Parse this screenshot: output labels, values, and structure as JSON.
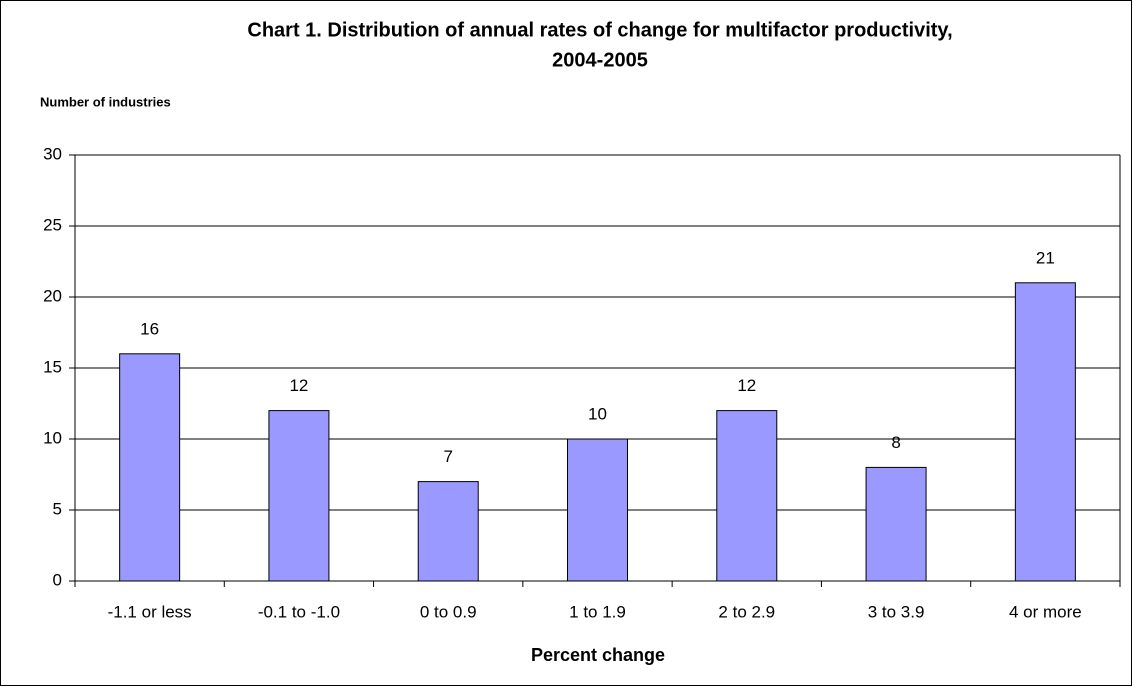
{
  "chart_data": {
    "type": "bar",
    "title": [
      "Chart 1. Distribution of annual rates of change for multifactor productivity,",
      "2004-2005"
    ],
    "y_axis_label": "Number of industries",
    "x_axis_label": "Percent change",
    "categories": [
      "-1.1 or less",
      "-0.1 to -1.0",
      "0 to 0.9",
      "1 to 1.9",
      "2 to 2.9",
      "3 to 3.9",
      "4 or more"
    ],
    "values": [
      16,
      12,
      7,
      10,
      12,
      8,
      21
    ],
    "color": "#9999ff",
    "ylim": [
      0,
      30
    ],
    "yticks": [
      0,
      5,
      10,
      15,
      20,
      25,
      30
    ],
    "grid": true
  }
}
